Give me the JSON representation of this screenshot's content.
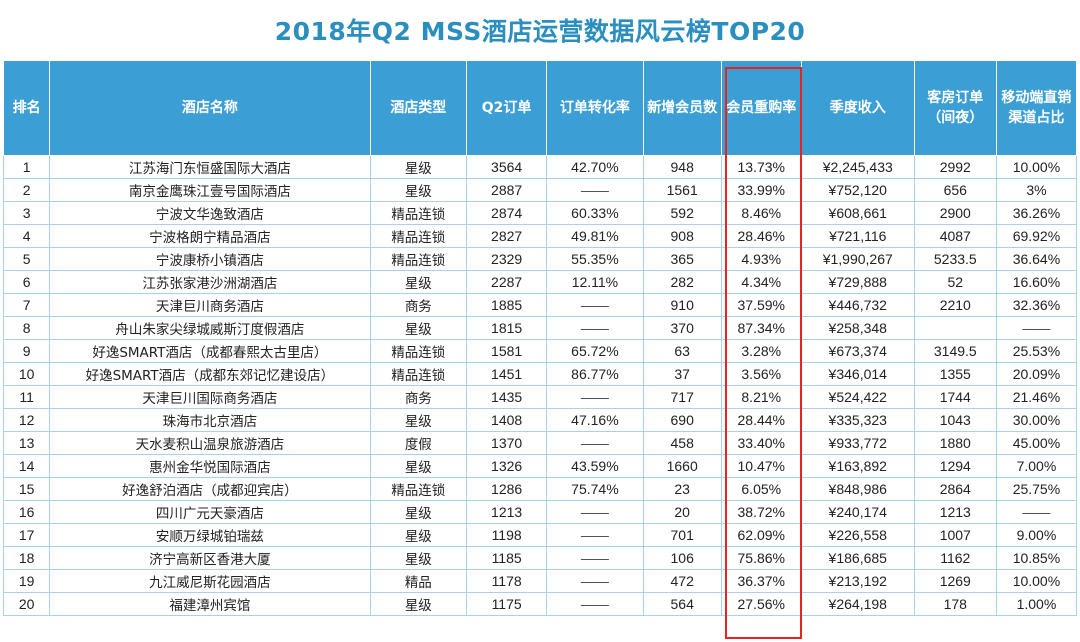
{
  "title": "2018年Q2 MSS酒店运营数据风云榜TOP20",
  "colors": {
    "header_bg": "#3b9fd6",
    "title": "#2a8fbf",
    "highlight_border": "#e8241c"
  },
  "headers": [
    "排名",
    "酒店名称",
    "酒店类型",
    "Q2订单",
    "订单转化率",
    "新增会员数",
    "会员重购率",
    "季度收入",
    "客房订单（间夜）",
    "移动端直销渠道占比"
  ],
  "rows": [
    [
      "1",
      "江苏海门东恒盛国际大酒店",
      "星级",
      "3564",
      "42.70%",
      "948",
      "13.73%",
      "¥2,245,433",
      "2992",
      "10.00%"
    ],
    [
      "2",
      "南京金鹰珠江壹号国际酒店",
      "星级",
      "2887",
      "——",
      "1561",
      "33.99%",
      "¥752,120",
      "656",
      "3%"
    ],
    [
      "3",
      "宁波文华逸致酒店",
      "精品连锁",
      "2874",
      "60.33%",
      "592",
      "8.46%",
      "¥608,661",
      "2900",
      "36.26%"
    ],
    [
      "4",
      "宁波格朗宁精品酒店",
      "精品连锁",
      "2827",
      "49.81%",
      "908",
      "28.46%",
      "¥721,116",
      "4087",
      "69.92%"
    ],
    [
      "5",
      "宁波康桥小镇酒店",
      "精品连锁",
      "2329",
      "55.35%",
      "365",
      "4.93%",
      "¥1,990,267",
      "5233.5",
      "36.64%"
    ],
    [
      "6",
      "江苏张家港沙洲湖酒店",
      "星级",
      "2287",
      "12.11%",
      "282",
      "4.34%",
      "¥729,888",
      "52",
      "16.60%"
    ],
    [
      "7",
      "天津巨川商务酒店",
      "商务",
      "1885",
      "——",
      "910",
      "37.59%",
      "¥446,732",
      "2210",
      "32.36%"
    ],
    [
      "8",
      "舟山朱家尖绿城威斯汀度假酒店",
      "星级",
      "1815",
      "——",
      "370",
      "87.34%",
      "¥258,348",
      "",
      "——"
    ],
    [
      "9",
      "好逸SMART酒店（成都春熙太古里店）",
      "精品连锁",
      "1581",
      "65.72%",
      "63",
      "3.28%",
      "¥673,374",
      "3149.5",
      "25.53%"
    ],
    [
      "10",
      "好逸SMART酒店（成都东郊记忆建设店）",
      "精品连锁",
      "1451",
      "86.77%",
      "37",
      "3.56%",
      "¥346,014",
      "1355",
      "20.09%"
    ],
    [
      "11",
      "天津巨川国际商务酒店",
      "商务",
      "1435",
      "——",
      "717",
      "8.21%",
      "¥524,422",
      "1744",
      "21.46%"
    ],
    [
      "12",
      "珠海市北京酒店",
      "星级",
      "1408",
      "47.16%",
      "690",
      "28.44%",
      "¥335,323",
      "1043",
      "30.00%"
    ],
    [
      "13",
      "天水麦积山温泉旅游酒店",
      "度假",
      "1370",
      "——",
      "458",
      "33.40%",
      "¥933,772",
      "1880",
      "45.00%"
    ],
    [
      "14",
      "惠州金华悦国际酒店",
      "星级",
      "1326",
      "43.59%",
      "1660",
      "10.47%",
      "¥163,892",
      "1294",
      "7.00%"
    ],
    [
      "15",
      "好逸舒泊酒店（成都迎宾店）",
      "精品连锁",
      "1286",
      "75.74%",
      "23",
      "6.05%",
      "¥848,986",
      "2864",
      "25.75%"
    ],
    [
      "16",
      "四川广元天豪酒店",
      "星级",
      "1213",
      "——",
      "20",
      "38.72%",
      "¥240,174",
      "1213",
      "——"
    ],
    [
      "17",
      "安顺万绿城铂瑞兹",
      "星级",
      "1198",
      "——",
      "701",
      "62.09%",
      "¥226,558",
      "1007",
      "9.00%"
    ],
    [
      "18",
      "济宁高新区香港大厦",
      "星级",
      "1185",
      "——",
      "106",
      "75.86%",
      "¥186,685",
      "1162",
      "10.85%"
    ],
    [
      "19",
      "九江威尼斯花园酒店",
      "精品",
      "1178",
      "——",
      "472",
      "36.37%",
      "¥213,192",
      "1269",
      "10.00%"
    ],
    [
      "20",
      "福建漳州宾馆",
      "星级",
      "1175",
      "——",
      "564",
      "27.56%",
      "¥264,198",
      "178",
      "1.00%"
    ]
  ]
}
